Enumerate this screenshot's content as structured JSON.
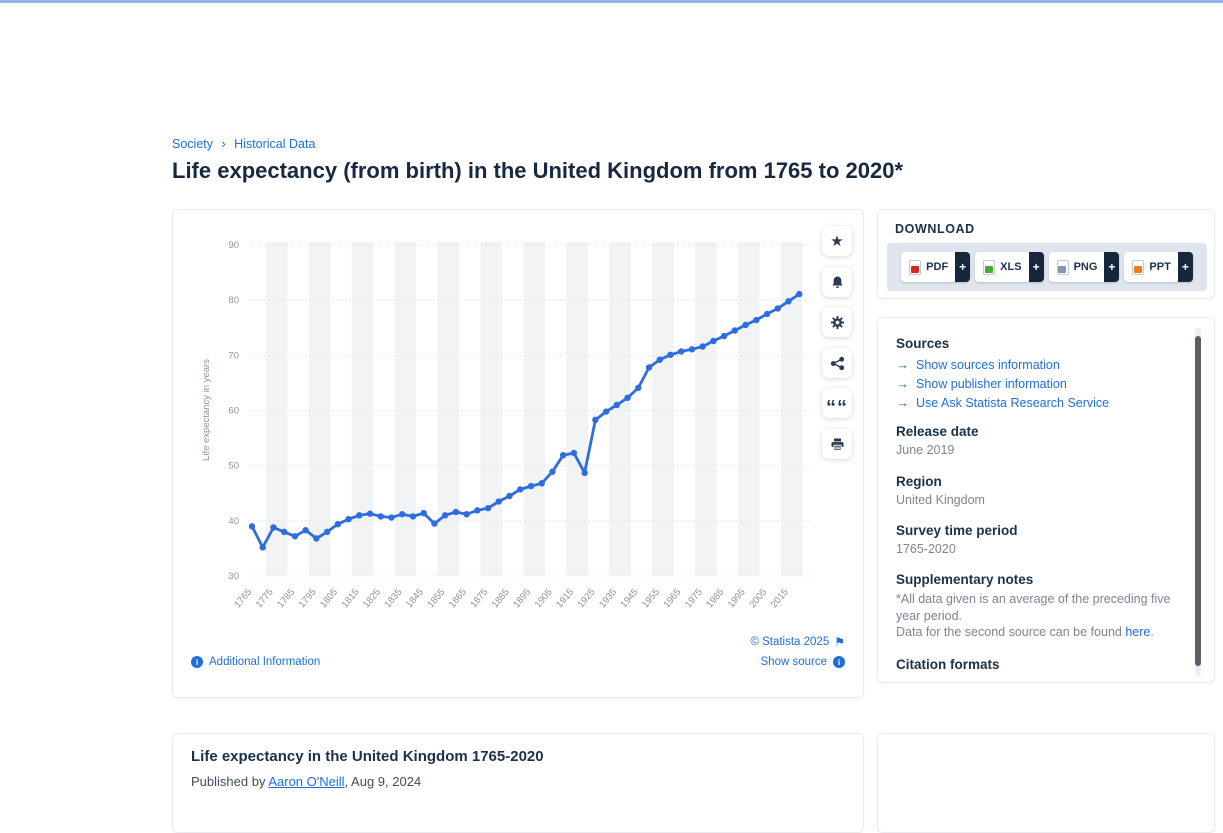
{
  "colors": {
    "topbar": "#8fb7ed",
    "accent_blue": "#1e6fdc",
    "heading_navy": "#1b3049",
    "muted_gray": "#7c8694",
    "line_blue": "#2e6de0",
    "band_gray": "#f2f3f5",
    "plus_tab_navy": "#16263c"
  },
  "breadcrumb": {
    "items": [
      "Society",
      "Historical Data"
    ],
    "separator": "›"
  },
  "page_title": "Life expectancy (from birth) in the United Kingdom from 1765 to 2020*",
  "icons": {
    "star": "★",
    "quote": "““",
    "flag": "⚑",
    "info": "i",
    "arrow": "→",
    "plus": "+"
  },
  "chart_card": {
    "footer": {
      "additional_info": "Additional Information",
      "copyright": "© Statista 2025",
      "show_source": "Show source"
    }
  },
  "chart_data": {
    "type": "line",
    "title": "Life expectancy (from birth) in the United Kingdom from 1765 to 2020",
    "xlabel": "",
    "ylabel": "Life expectancy in years",
    "ylim": [
      30,
      90
    ],
    "yticks": [
      30,
      40,
      50,
      60,
      70,
      80,
      90
    ],
    "grid": "dotted-horizontal",
    "legend": "none",
    "band_color": "#f2f3f5",
    "line_color": "#2e6de0",
    "x": [
      1765,
      1770,
      1775,
      1780,
      1785,
      1790,
      1795,
      1800,
      1805,
      1810,
      1815,
      1820,
      1825,
      1830,
      1835,
      1840,
      1845,
      1850,
      1855,
      1860,
      1865,
      1870,
      1875,
      1880,
      1885,
      1890,
      1895,
      1900,
      1905,
      1910,
      1915,
      1920,
      1925,
      1930,
      1935,
      1940,
      1945,
      1950,
      1955,
      1960,
      1965,
      1970,
      1975,
      1980,
      1985,
      1990,
      1995,
      2000,
      2005,
      2010,
      2015,
      2020
    ],
    "values": [
      39.0,
      35.2,
      38.8,
      38.0,
      37.2,
      38.3,
      36.8,
      38.0,
      39.4,
      40.3,
      41.0,
      41.3,
      40.8,
      40.6,
      41.2,
      40.8,
      41.4,
      39.5,
      41.0,
      41.6,
      41.2,
      41.9,
      42.3,
      43.5,
      44.5,
      45.7,
      46.3,
      46.8,
      48.9,
      51.9,
      52.3,
      48.7,
      58.3,
      59.8,
      61.0,
      62.3,
      64.1,
      67.8,
      69.2,
      70.1,
      70.7,
      71.1,
      71.6,
      72.6,
      73.5,
      74.5,
      75.5,
      76.4,
      77.5,
      78.5,
      79.8,
      81.1
    ],
    "xtick_labels": [
      "1765",
      "1775",
      "1785",
      "1795",
      "1805",
      "1815",
      "1825",
      "1835",
      "1845",
      "1855",
      "1865",
      "1875",
      "1885",
      "1895",
      "1905",
      "1915",
      "1925",
      "1935",
      "1945",
      "1955",
      "1965",
      "1975",
      "1985",
      "1995",
      "2005",
      "2015"
    ]
  },
  "download": {
    "heading": "DOWNLOAD",
    "buttons": [
      {
        "label": "PDF",
        "badge_color": "#cf2a27"
      },
      {
        "label": "XLS",
        "badge_color": "#4ca82e"
      },
      {
        "label": "PNG",
        "badge_color": "#7f96b2"
      },
      {
        "label": "PPT",
        "badge_color": "#ef7d1a"
      }
    ]
  },
  "sources": {
    "heading": "Sources",
    "links": [
      "Show sources information",
      "Show publisher information",
      "Use Ask Statista Research Service"
    ],
    "release_date_label": "Release date",
    "release_date": "June 2019",
    "region_label": "Region",
    "region": "United Kingdom",
    "survey_label": "Survey time period",
    "survey": "1765-2020",
    "notes_label": "Supplementary notes",
    "notes_line1": "*All data given is an average of the preceding five year period.",
    "notes_line2_prefix": "Data for the second source can be found ",
    "notes_link": "here",
    "notes_suffix": ".",
    "citation_label": "Citation formats"
  },
  "publication": {
    "title": "Life expectancy in the United Kingdom 1765-2020",
    "published_prefix": "Published by ",
    "author": "Aaron O'Neill",
    "published_suffix": ", Aug 9, 2024"
  }
}
